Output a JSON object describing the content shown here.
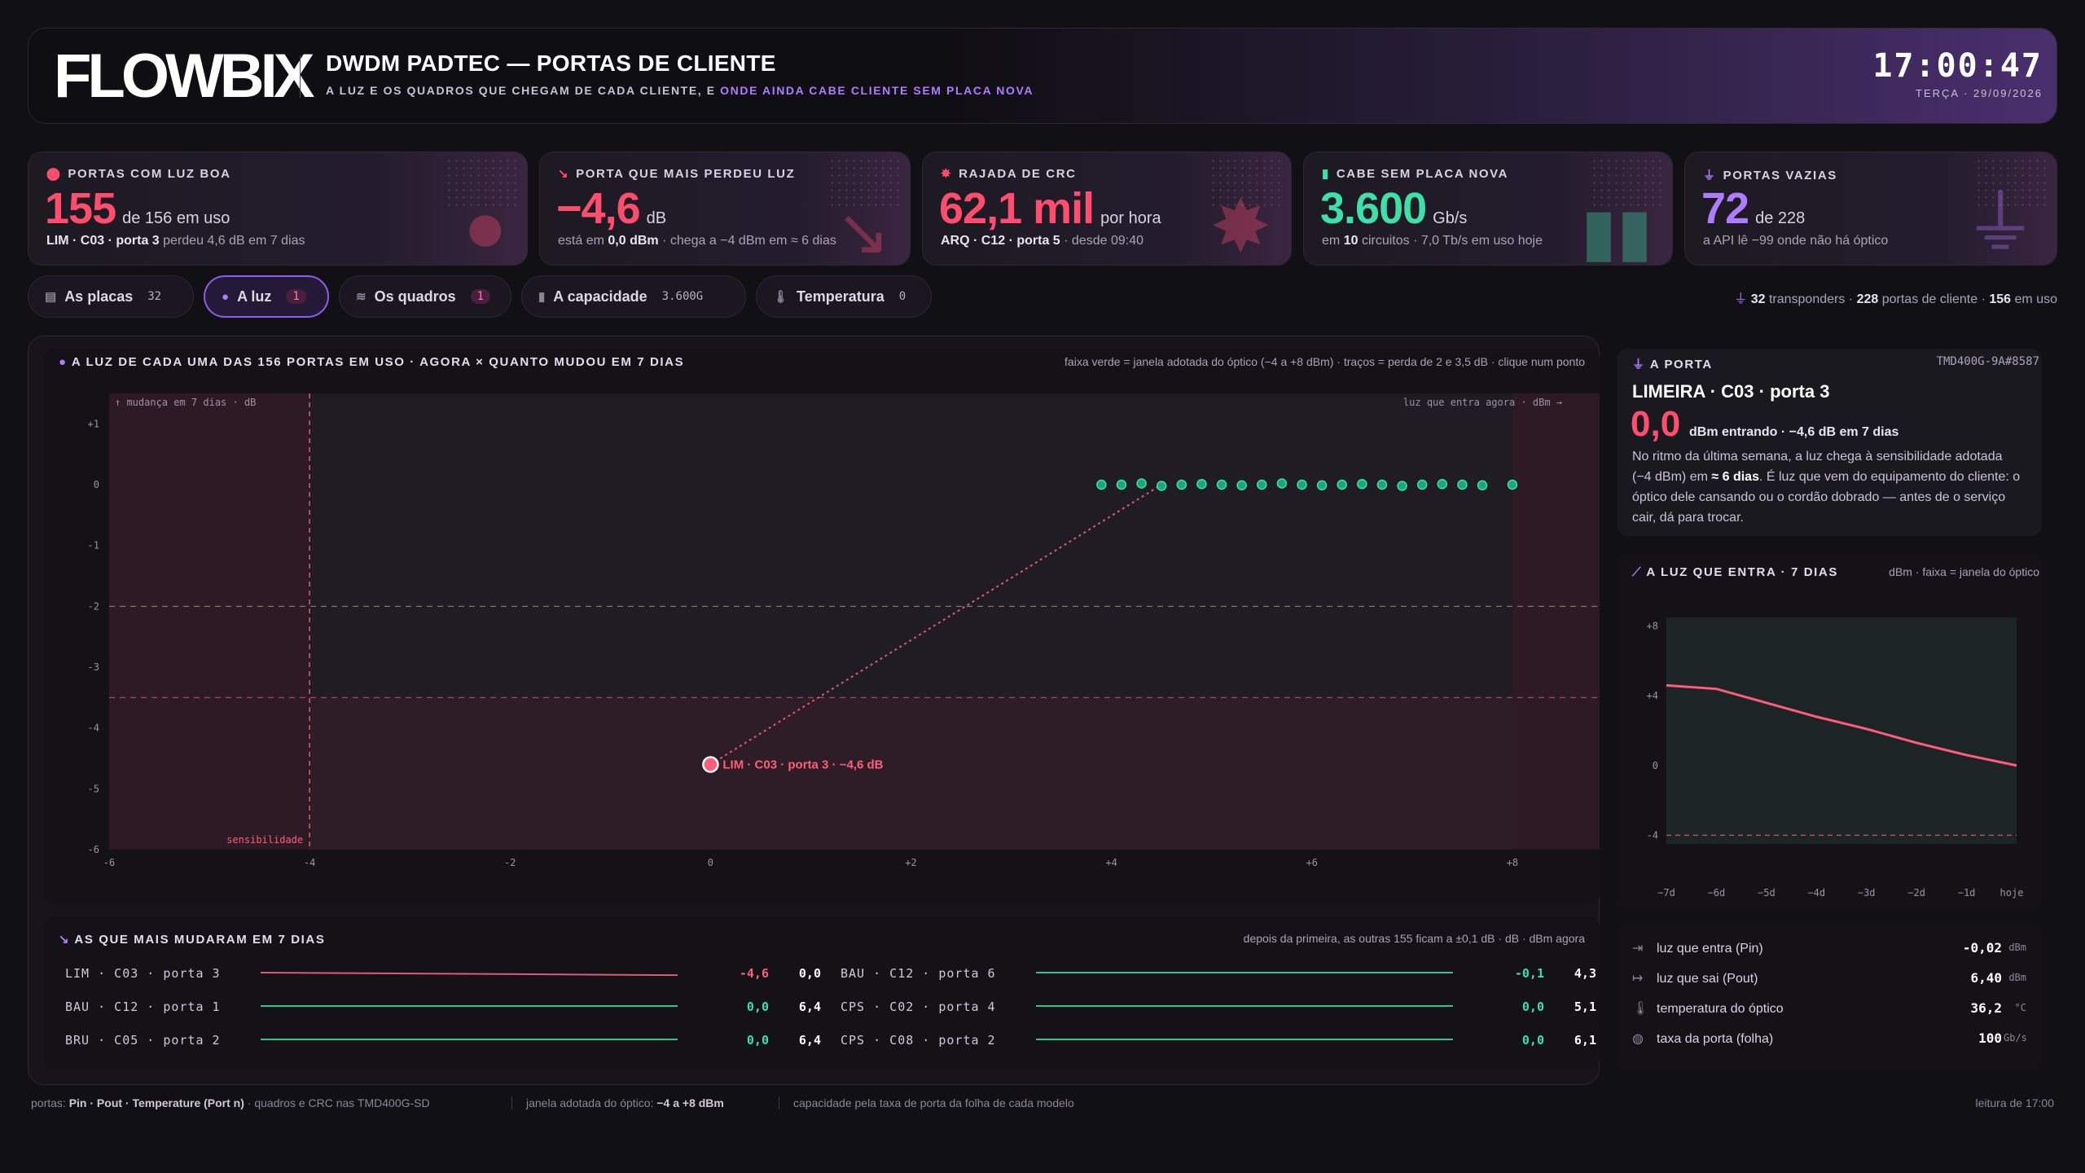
{
  "header": {
    "logo": "FLOWBIX",
    "title": "DWDM PADTEC — PORTAS DE CLIENTE",
    "subtitle_a": "A LUZ E OS QUADROS QUE CHEGAM DE CADA CLIENTE, E",
    "subtitle_b": "ONDE AINDA CABE CLIENTE SEM PLACA NOVA",
    "clock": "17:00:47",
    "date": "TERÇA · 29/09/2026"
  },
  "kpis": [
    {
      "label": "PORTAS COM LUZ BOA",
      "value": "155",
      "unit": "de 156 em uso",
      "sub_bold": "LIM · C03 · porta 3",
      "sub": "perdeu 4,6 dB em 7 dias",
      "color": "#ff4d6d"
    },
    {
      "label": "PORTA QUE MAIS PERDEU LUZ",
      "value": "−4,6",
      "unit": "dB",
      "sub_a": "está em",
      "sub_bold": "0,0 dBm",
      "sub": "· chega a −4 dBm em ≈ 6 dias",
      "color": "#ff4d6d"
    },
    {
      "label": "RAJADA DE CRC",
      "value": "62,1 mil",
      "unit": "por hora",
      "sub_bold": "ARQ · C12 · porta 5",
      "sub": "· desde 09:40",
      "color": "#ff4d6d"
    },
    {
      "label": "CABE SEM PLACA NOVA",
      "value": "3.600",
      "unit": "Gb/s",
      "sub_a": "em",
      "sub_bold": "10",
      "sub": "circuitos · 7,0 Tb/s em uso hoje",
      "color": "#3ee0a8"
    },
    {
      "label": "PORTAS VAZIAS",
      "value": "72",
      "unit": "de 228",
      "sub": "a API lê −99 onde não há óptico",
      "color": "#b07cff"
    }
  ],
  "tabs": [
    {
      "label": "As placas",
      "count": "32"
    },
    {
      "label": "A luz",
      "count": "1"
    },
    {
      "label": "Os quadros",
      "count": "1"
    },
    {
      "label": "A capacidade",
      "count": "3.600G"
    },
    {
      "label": "Temperatura",
      "count": "0"
    }
  ],
  "stats": {
    "a": "32",
    "a_lbl": "transponders ·",
    "b": "228",
    "b_lbl": "portas de cliente ·",
    "c": "156",
    "c_lbl": "em uso"
  },
  "scatter": {
    "title": "A LUZ DE CADA UMA DAS 156 PORTAS EM USO · AGORA × QUANTO MUDOU EM 7 DIAS",
    "note": "faixa verde = janela adotada do óptico (−4 a +8 dBm) · traços = perda de 2 e 3,5 dB · clique num ponto",
    "ylabel": "↑ mudança em 7 dias · dB",
    "xlabel": "luz que entra agora · dBm →",
    "sens_label": "sensibilidade",
    "highlight_label": "LIM · C03 · porta 3 · −4,6 dB",
    "xticks": [
      "-6",
      "-4",
      "-2",
      "0",
      "+2",
      "+4",
      "+6",
      "+8"
    ],
    "yticks": [
      "+1",
      "0",
      "-1",
      "-2",
      "-3",
      "-4",
      "-5",
      "-6"
    ]
  },
  "chart_data": [
    {
      "type": "scatter",
      "title": "A LUZ DE CADA UMA DAS 156 PORTAS EM USO · AGORA × QUANTO MUDOU EM 7 DIAS",
      "xlabel": "luz que entra agora · dBm →",
      "ylabel": "↑ mudança em 7 dias · dB",
      "xlim": [
        -6,
        9
      ],
      "ylim": [
        -6,
        1.5
      ],
      "series": [
        {
          "values": [
            [
              3.9,
              0
            ],
            [
              4.1,
              0
            ],
            [
              4.3,
              0.02
            ],
            [
              4.5,
              -0.02
            ],
            [
              4.7,
              0
            ],
            [
              4.9,
              0.01
            ],
            [
              5.1,
              0
            ],
            [
              5.3,
              -0.01
            ],
            [
              5.5,
              0
            ],
            [
              5.7,
              0.02
            ],
            [
              5.9,
              0
            ],
            [
              6.1,
              -0.01
            ],
            [
              6.3,
              0
            ],
            [
              6.5,
              0.01
            ],
            [
              6.7,
              0
            ],
            [
              6.9,
              -0.02
            ],
            [
              7.1,
              0
            ],
            [
              7.3,
              0.01
            ],
            [
              7.5,
              0
            ],
            [
              7.7,
              -0.01
            ],
            [
              8.0,
              0
            ]
          ]
        },
        {
          "name": "LIM · C03 · porta 3",
          "values": [
            [
              0.0,
              -4.6
            ]
          ]
        }
      ]
    },
    {
      "type": "line",
      "title": "A LUZ QUE ENTRA · 7 DIAS",
      "ylim": [
        -4.5,
        8.5
      ],
      "categories": [
        "−7d",
        "−6d",
        "−5d",
        "−4d",
        "−3d",
        "−2d",
        "−1d",
        "hoje"
      ],
      "series": [
        {
          "values": [
            4.6,
            4.4,
            3.6,
            2.8,
            2.1,
            1.3,
            0.6,
            0.0
          ]
        }
      ]
    }
  ],
  "changes": {
    "title": "AS QUE MAIS MUDARAM EM 7 DIAS",
    "note": "depois da primeira, as outras 155 ficam a ±0,1 dB · dB · dBm agora",
    "rows": [
      {
        "name": "LIM · C03 · porta 3",
        "delta": "-4,6",
        "now": "0,0",
        "neg": true
      },
      {
        "name": "BAU · C12 · porta 1",
        "delta": "0,0",
        "now": "6,4",
        "neg": false
      },
      {
        "name": "BRU · C05 · porta 2",
        "delta": "0,0",
        "now": "6,4",
        "neg": false
      },
      {
        "name": "BAU · C12 · porta 6",
        "delta": "-0,1",
        "now": "4,3",
        "neg": false
      },
      {
        "name": "CPS · C02 · porta 4",
        "delta": "0,0",
        "now": "5,1",
        "neg": false
      },
      {
        "name": "CPS · C08 · porta 2",
        "delta": "0,0",
        "now": "6,1",
        "neg": false
      }
    ]
  },
  "port": {
    "label": "A PORTA",
    "id": "TMD400G-9A#8587",
    "name": "LIMEIRA · C03 · porta 3",
    "value": "0,0",
    "value_note": "dBm entrando · −4,6 dB em 7 dias",
    "desc_a": "No ritmo da última semana, a luz chega à sensibilidade adotada (−4 dBm) em",
    "desc_bold": "≈ 6 dias",
    "desc_b": ". É luz que vem do equipamento do cliente: o óptico dele cansando ou o cordão dobrado — antes de o serviço cair, dá para trocar."
  },
  "mini": {
    "title": "A LUZ QUE ENTRA · 7 DIAS",
    "note": "dBm · faixa = janela do óptico",
    "yticks": [
      "+8",
      "+4",
      "0",
      "-4"
    ]
  },
  "metrics": [
    {
      "icon": "⇥",
      "label": "luz que entra (Pin)",
      "value": "-0,02",
      "unit": "dBm"
    },
    {
      "icon": "↦",
      "label": "luz que sai (Pout)",
      "value": "6,40",
      "unit": "dBm"
    },
    {
      "icon": "🌡",
      "label": "temperatura do óptico",
      "value": "36,2",
      "unit": "°C"
    },
    {
      "icon": "◍",
      "label": "taxa da porta (folha)",
      "value": "100",
      "unit": "Gb/s"
    }
  ],
  "footer": {
    "a": "portas:",
    "a_bold": "Pin · Pout · Temperature (Port n)",
    "a2": "· quadros e CRC nas TMD400G-SD",
    "b": "janela adotada do óptico:",
    "b_bold": "−4 a +8 dBm",
    "c": "capacidade pela taxa de porta da folha de cada modelo",
    "d": "leitura de 17:00"
  }
}
